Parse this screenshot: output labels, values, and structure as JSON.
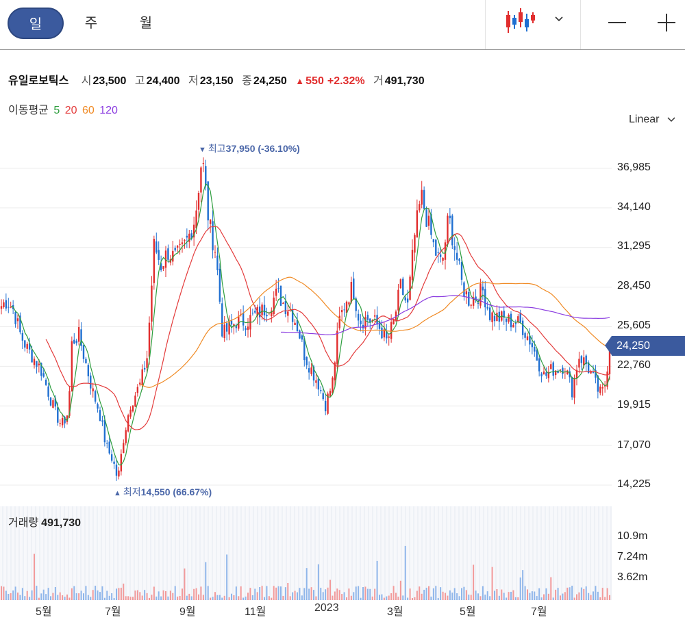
{
  "period_tabs": [
    {
      "label": "일",
      "active": true
    },
    {
      "label": "주",
      "active": false
    },
    {
      "label": "월",
      "active": false
    }
  ],
  "toolbar": {
    "chart_type_icon": "candlestick-icon",
    "dropdown_icon": "chevron-down-icon",
    "zoom_out_icon": "minus-icon",
    "zoom_in_icon": "plus-icon"
  },
  "stock": {
    "name": "유일로보틱스",
    "open_label": "시",
    "open": "23,500",
    "high_label": "고",
    "high": "24,400",
    "low_label": "저",
    "low": "23,150",
    "close_label": "종",
    "close": "24,250",
    "change": "550",
    "change_pct": "+2.32%",
    "volume_label": "거",
    "volume": "491,730"
  },
  "moving_average": {
    "label": "이동평균",
    "periods": [
      {
        "value": "5",
        "color": "#2e9e3e"
      },
      {
        "value": "20",
        "color": "#e33b3b"
      },
      {
        "value": "60",
        "color": "#f08a24"
      },
      {
        "value": "120",
        "color": "#8a3be0"
      }
    ]
  },
  "scale_mode": "Linear",
  "max_marker": {
    "label": "최고",
    "price": "37,950",
    "pct": "(-36.10%)"
  },
  "min_marker": {
    "label": "최저",
    "price": "14,550",
    "pct": "(66.67%)"
  },
  "current_price": "24,250",
  "volume_section": {
    "label": "거래량",
    "value": "491,730"
  },
  "colors": {
    "accent": "#3b5a9e",
    "up": "#e12e2e",
    "down": "#1f6fd1"
  },
  "chart_data": {
    "type": "candlestick",
    "y_ticks": [
      "36,985",
      "34,140",
      "31,295",
      "28,450",
      "25,605",
      "22,760",
      "19,915",
      "17,070",
      "14,225"
    ],
    "ylim": [
      14225,
      36985
    ],
    "volume_ticks": [
      "10.9m",
      "7.24m",
      "3.62m"
    ],
    "x_ticks": [
      "5월",
      "7월",
      "9월",
      "11월",
      "2023",
      "3월",
      "5월",
      "7월"
    ],
    "price_path": [
      [
        0,
        27000
      ],
      [
        10,
        27500
      ],
      [
        20,
        26800
      ],
      [
        30,
        25000
      ],
      [
        40,
        24000
      ],
      [
        50,
        23300
      ],
      [
        60,
        22500
      ],
      [
        70,
        21000
      ],
      [
        80,
        19500
      ],
      [
        90,
        18500
      ],
      [
        100,
        19500
      ],
      [
        105,
        24500
      ],
      [
        115,
        25000
      ],
      [
        125,
        23000
      ],
      [
        135,
        21000
      ],
      [
        145,
        19500
      ],
      [
        155,
        17000
      ],
      [
        165,
        16000
      ],
      [
        172,
        14550
      ],
      [
        180,
        17500
      ],
      [
        190,
        20000
      ],
      [
        205,
        21500
      ],
      [
        215,
        23500
      ],
      [
        225,
        31500
      ],
      [
        235,
        30000
      ],
      [
        245,
        31000
      ],
      [
        255,
        30500
      ],
      [
        265,
        31000
      ],
      [
        275,
        32000
      ],
      [
        285,
        33500
      ],
      [
        295,
        37950
      ],
      [
        305,
        33000
      ],
      [
        315,
        31000
      ],
      [
        325,
        25000
      ],
      [
        335,
        25500
      ],
      [
        345,
        26000
      ],
      [
        360,
        26000
      ],
      [
        375,
        26500
      ],
      [
        390,
        27000
      ],
      [
        405,
        28000
      ],
      [
        415,
        27200
      ],
      [
        425,
        26800
      ],
      [
        435,
        25500
      ],
      [
        445,
        23500
      ],
      [
        455,
        22500
      ],
      [
        465,
        21500
      ],
      [
        475,
        20000
      ],
      [
        485,
        21500
      ],
      [
        495,
        26000
      ],
      [
        505,
        27500
      ],
      [
        515,
        28500
      ],
      [
        525,
        26000
      ],
      [
        535,
        26200
      ],
      [
        545,
        26000
      ],
      [
        555,
        25500
      ],
      [
        565,
        24500
      ],
      [
        575,
        26000
      ],
      [
        585,
        28500
      ],
      [
        595,
        27000
      ],
      [
        605,
        32000
      ],
      [
        615,
        35000
      ],
      [
        625,
        33000
      ],
      [
        635,
        31000
      ],
      [
        645,
        30000
      ],
      [
        655,
        33500
      ],
      [
        665,
        31000
      ],
      [
        675,
        28500
      ],
      [
        685,
        27500
      ],
      [
        695,
        27800
      ],
      [
        705,
        28200
      ],
      [
        715,
        26500
      ],
      [
        730,
        26200
      ],
      [
        745,
        26000
      ],
      [
        760,
        25800
      ],
      [
        775,
        24500
      ],
      [
        785,
        23200
      ],
      [
        795,
        22000
      ],
      [
        805,
        22500
      ],
      [
        815,
        22600
      ],
      [
        825,
        22800
      ],
      [
        835,
        21000
      ],
      [
        845,
        23500
      ],
      [
        855,
        23000
      ],
      [
        865,
        22000
      ],
      [
        875,
        20800
      ],
      [
        882,
        21000
      ],
      [
        890,
        24250
      ]
    ]
  }
}
